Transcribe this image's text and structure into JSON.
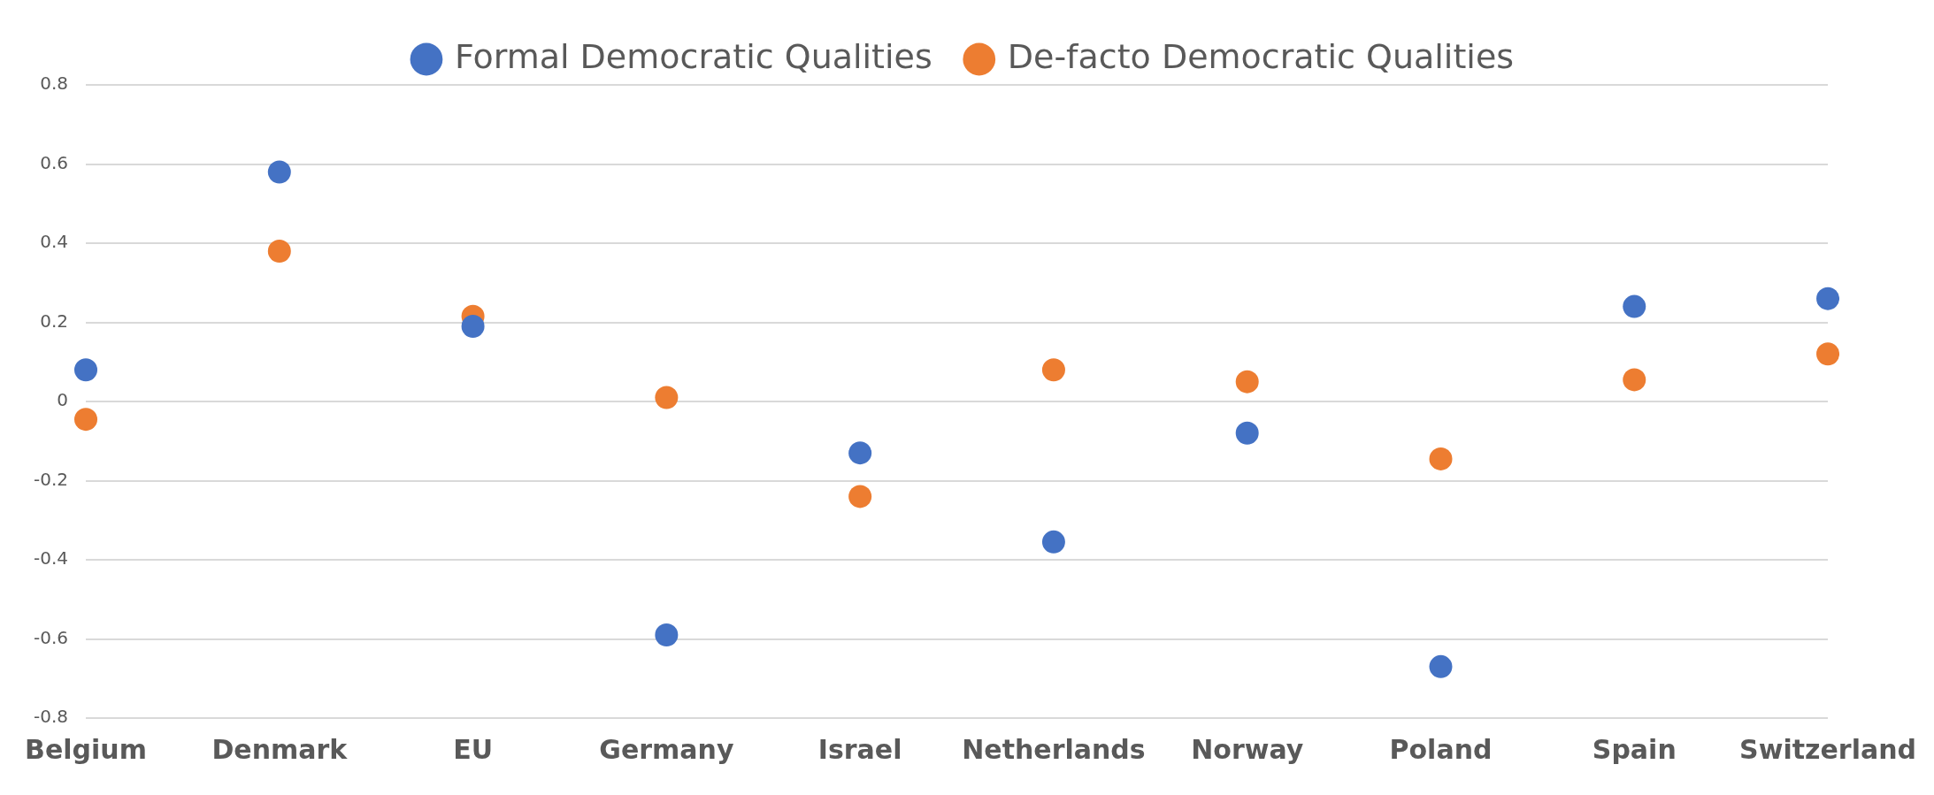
{
  "chart_data": {
    "type": "scatter",
    "categories": [
      "Belgium",
      "Denmark",
      "EU",
      "Germany",
      "Israel",
      "Netherlands",
      "Norway",
      "Poland",
      "Spain",
      "Switzerland"
    ],
    "series": [
      {
        "name": "Formal Democratic Qualities",
        "color": "#4472c4",
        "values": [
          0.08,
          0.58,
          0.19,
          -0.59,
          -0.13,
          -0.355,
          -0.08,
          -0.67,
          0.24,
          0.26
        ]
      },
      {
        "name": "De-facto Democratic Qualities",
        "color": "#ed7d31",
        "values": [
          -0.045,
          0.38,
          0.215,
          0.01,
          -0.24,
          0.08,
          0.05,
          -0.145,
          0.055,
          0.12
        ]
      }
    ],
    "ylim": [
      -0.8,
      0.8
    ],
    "yticks": [
      -0.8,
      -0.6,
      -0.4,
      -0.2,
      0,
      0.2,
      0.4,
      0.6,
      0.8
    ],
    "grid": "y",
    "legend": "top",
    "marker": "circle"
  }
}
